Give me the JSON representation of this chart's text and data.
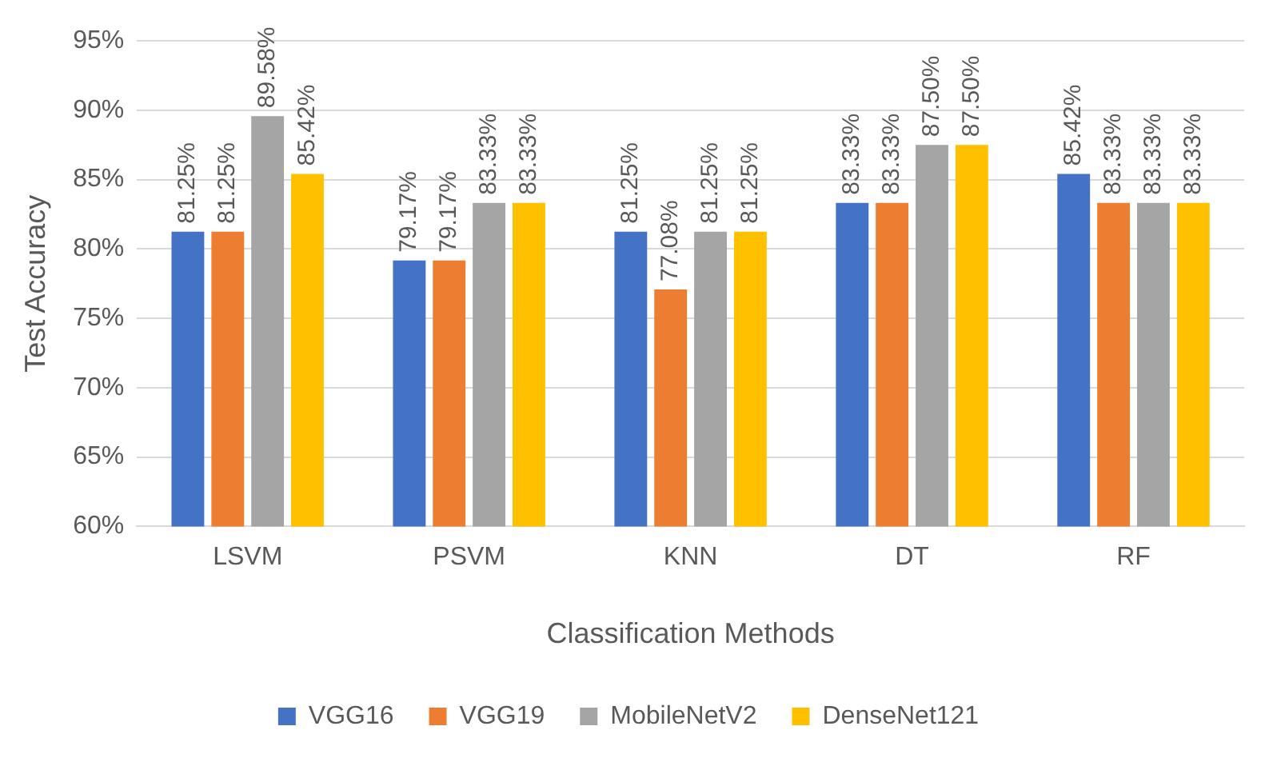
{
  "chart_data": {
    "type": "bar",
    "xlabel": "Classification Methods",
    "ylabel": "Test Accuracy",
    "categories": [
      "LSVM",
      "PSVM",
      "KNN",
      "DT",
      "RF"
    ],
    "series": [
      {
        "name": "VGG16",
        "color": "#4472c4",
        "values": [
          81.25,
          79.17,
          81.25,
          83.33,
          85.42
        ],
        "value_labels": [
          "81.25%",
          "79.17%",
          "81.25%",
          "83.33%",
          "85.42%"
        ]
      },
      {
        "name": "VGG19",
        "color": "#ed7d31",
        "values": [
          81.25,
          79.17,
          77.08,
          83.33,
          83.33
        ],
        "value_labels": [
          "81.25%",
          "79.17%",
          "77.08%",
          "83.33%",
          "83.33%"
        ]
      },
      {
        "name": "MobileNetV2",
        "color": "#a5a5a5",
        "values": [
          89.58,
          83.33,
          81.25,
          87.5,
          83.33
        ],
        "value_labels": [
          "89.58%",
          "83.33%",
          "81.25%",
          "87.50%",
          "83.33%"
        ]
      },
      {
        "name": "DenseNet121",
        "color": "#ffc000",
        "values": [
          85.42,
          83.33,
          81.25,
          87.5,
          83.33
        ],
        "value_labels": [
          "85.42%",
          "83.33%",
          "81.25%",
          "87.50%",
          "83.33%"
        ]
      }
    ],
    "ylim": [
      60,
      95
    ],
    "yticks": [
      {
        "value": 60,
        "label": "60%"
      },
      {
        "value": 65,
        "label": "65%"
      },
      {
        "value": 70,
        "label": "70%"
      },
      {
        "value": 75,
        "label": "75%"
      },
      {
        "value": 80,
        "label": "80%"
      },
      {
        "value": 85,
        "label": "85%"
      },
      {
        "value": 90,
        "label": "90%"
      },
      {
        "value": 95,
        "label": "95%"
      }
    ],
    "grid": "y",
    "legend": "bottom"
  }
}
